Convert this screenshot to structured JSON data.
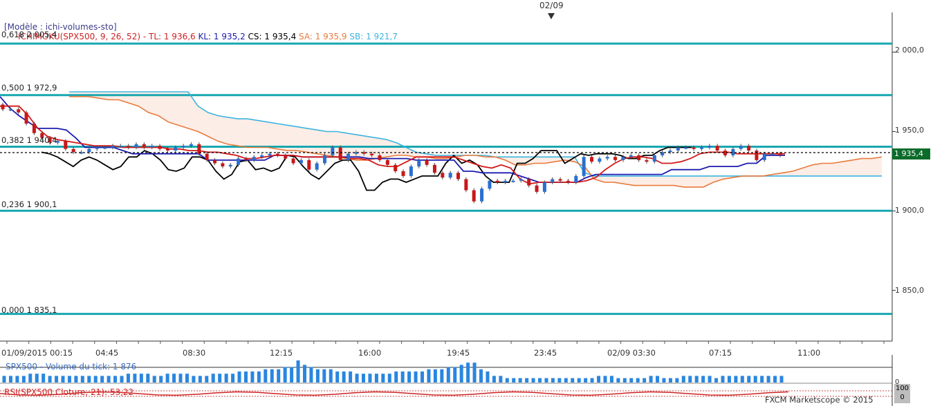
{
  "top_date": "02/09",
  "model_label": "[Modèle : ichi-volumes-sto]",
  "legend": {
    "ichimoku": "ICHIMOKU(SPX500, 9, 26, 52) -",
    "tl": "TL: 1 936,6",
    "kl": "KL: 1 935,2",
    "cs": "CS: 1 935,4",
    "sa": "SA: 1 935,9",
    "sb": "SB: 1 921,7"
  },
  "fib_levels": [
    {
      "label": "0,618 2 005,4",
      "value": 2005.4
    },
    {
      "label": "0,500 1 972,9",
      "value": 1972.9
    },
    {
      "label": "0,382 1 940,4",
      "value": 1940.4
    },
    {
      "label": "0,236 1 900,1",
      "value": 1900.1
    },
    {
      "label": "0,000 1 835,1",
      "value": 1835.1
    }
  ],
  "y_axis": [
    "2 000,0",
    "1 950,0",
    "1 900,0",
    "1 850,0"
  ],
  "price_tag": "1 935,4",
  "x_axis": [
    "01/09/2015 00:15",
    "04:45",
    "08:30",
    "12:15",
    "16:00",
    "19:45",
    "23:45",
    "02/09 03:30",
    "07:15",
    "11:00"
  ],
  "volume_title": "SPX500 - Volume du tick: 1 876",
  "volume_zero": "0",
  "rsi_title": "RSI(SPX500.Cloture, 21): 53,22",
  "rsi_box": [
    "100",
    "0"
  ],
  "credit": "FXCM Marketscope © 2015",
  "colors": {
    "fib": "#17a7b0",
    "tenkan": "#d21818",
    "kijun": "#1a1ab0",
    "chikou": "#000000",
    "senkou_a": "#e87a3c",
    "senkou_b": "#3ab4e0",
    "bull": "#2a6fd0",
    "bear": "#c81818",
    "volume": "#2a86e0"
  },
  "chart_data": {
    "type": "line",
    "title": "",
    "ylim": [
      1818,
      2025
    ],
    "series_hint": "ichimoku",
    "fibonacci": [
      2005.4,
      1972.9,
      1940.4,
      1900.1,
      1835.1
    ],
    "last_price": 1935.4,
    "tenkan": [
      1966,
      1966,
      1966,
      1960,
      1952,
      1947,
      1945,
      1944,
      1943,
      1942,
      1941,
      1941,
      1941,
      1940,
      1940,
      1940,
      1940,
      1940,
      1939,
      1939,
      1938,
      1938,
      1937,
      1937,
      1936,
      1935,
      1933,
      1933,
      1934,
      1935,
      1935,
      1935,
      1934,
      1934,
      1934,
      1934,
      1934,
      1933,
      1933,
      1932,
      1929,
      1928,
      1928,
      1931,
      1934,
      1934,
      1934,
      1934,
      1934,
      1932,
      1930,
      1928,
      1927,
      1929,
      1927,
      1920,
      1917,
      1918,
      1918,
      1918,
      1918,
      1918,
      1919,
      1921,
      1926,
      1930,
      1933,
      1934,
      1934,
      1933,
      1930,
      1930,
      1931,
      1933,
      1936,
      1937,
      1937,
      1937,
      1936,
      1936,
      1936,
      1936,
      1936,
      1936
    ],
    "kijun": [
      1972,
      1965,
      1960,
      1956,
      1952,
      1952,
      1952,
      1951,
      1946,
      1940,
      1940,
      1940,
      1940,
      1938,
      1936,
      1936,
      1936,
      1936,
      1936,
      1936,
      1936,
      1936,
      1932,
      1932,
      1932,
      1932,
      1932,
      1932,
      1932,
      1935,
      1935,
      1935,
      1934,
      1934,
      1934,
      1934,
      1934,
      1934,
      1934,
      1933,
      1933,
      1933,
      1933,
      1933,
      1932,
      1932,
      1932,
      1932,
      1932,
      1925,
      1925,
      1924,
      1924,
      1924,
      1924,
      1922,
      1920,
      1918,
      1918,
      1918,
      1918,
      1918,
      1921,
      1923,
      1923,
      1923,
      1923,
      1923,
      1923,
      1923,
      1923,
      1926,
      1926,
      1926,
      1926,
      1928,
      1928,
      1928,
      1928,
      1930,
      1930,
      1935,
      1935,
      1935
    ],
    "senkou_a": [
      1972,
      1972,
      1972,
      1971,
      1970,
      1970,
      1968,
      1966,
      1962,
      1960,
      1956,
      1954,
      1952,
      1950,
      1947,
      1944,
      1942,
      1941,
      1940,
      1940,
      1940,
      1939,
      1938,
      1938,
      1937,
      1936,
      1935,
      1934,
      1933,
      1932,
      1932,
      1933,
      1934,
      1935,
      1935,
      1934,
      1934,
      1933,
      1933,
      1934,
      1935,
      1935,
      1934,
      1934,
      1932,
      1929,
      1929,
      1930,
      1930,
      1931,
      1932,
      1931,
      1928,
      1920,
      1918,
      1918,
      1917,
      1916,
      1916,
      1916,
      1916,
      1916,
      1915,
      1915,
      1915,
      1918,
      1920,
      1921,
      1922,
      1922,
      1922,
      1923,
      1924,
      1925,
      1927,
      1929,
      1930,
      1930,
      1931,
      1932,
      1933,
      1933,
      1934
    ],
    "senkou_b": [
      1975,
      1975,
      1975,
      1975,
      1975,
      1975,
      1975,
      1975,
      1975,
      1975,
      1975,
      1975,
      1975,
      1966,
      1962,
      1960,
      1959,
      1958,
      1958,
      1957,
      1956,
      1955,
      1954,
      1953,
      1952,
      1951,
      1950,
      1950,
      1949,
      1948,
      1947,
      1946,
      1945,
      1943,
      1940,
      1937,
      1936,
      1935,
      1935,
      1935,
      1935,
      1935,
      1935,
      1934,
      1934,
      1934,
      1934,
      1934,
      1934,
      1934,
      1934,
      1934,
      1924,
      1922,
      1922,
      1922,
      1922,
      1922,
      1922,
      1922,
      1922,
      1922,
      1922,
      1922,
      1922,
      1922,
      1922,
      1922,
      1922,
      1922,
      1922,
      1922,
      1922,
      1922,
      1922,
      1922,
      1922,
      1922,
      1922,
      1922,
      1922,
      1922,
      1922
    ],
    "chikou": [
      1937,
      1936,
      1934,
      1931,
      1928,
      1932,
      1934,
      1932,
      1929,
      1926,
      1928,
      1934,
      1934,
      1938,
      1936,
      1932,
      1926,
      1925,
      1927,
      1934,
      1934,
      1932,
      1925,
      1920,
      1923,
      1931,
      1932,
      1926,
      1927,
      1925,
      1927,
      1935,
      1934,
      1928,
      1923,
      1920,
      1925,
      1930,
      1932,
      1932,
      1925,
      1913,
      1913,
      1918,
      1920,
      1920,
      1918,
      1920,
      1922,
      1922,
      1922,
      1930,
      1935,
      1930,
      1932,
      1929,
      1922,
      1918,
      1918,
      1918,
      1930,
      1930,
      1933,
      1938,
      1938,
      1938,
      1930,
      1933,
      1936,
      1935,
      1936,
      1936,
      1936,
      1935,
      1933,
      1933,
      1935,
      1935,
      1938,
      1940,
      1940,
      1940,
      1940
    ],
    "candles": [
      [
        1967,
        1964
      ],
      [
        1964,
        1964
      ],
      [
        1964,
        1962
      ],
      [
        1962,
        1955
      ],
      [
        1955,
        1949
      ],
      [
        1949,
        1946
      ],
      [
        1946,
        1943
      ],
      [
        1943,
        1944
      ],
      [
        1944,
        1939
      ],
      [
        1939,
        1937
      ],
      [
        1937,
        1937
      ],
      [
        1937,
        1939
      ],
      [
        1939,
        1940
      ],
      [
        1940,
        1940
      ],
      [
        1940,
        1941
      ],
      [
        1941,
        1941
      ],
      [
        1941,
        1940
      ],
      [
        1940,
        1942
      ],
      [
        1942,
        1940
      ],
      [
        1940,
        1941
      ],
      [
        1941,
        1939
      ],
      [
        1939,
        1938
      ],
      [
        1938,
        1940
      ],
      [
        1940,
        1941
      ],
      [
        1941,
        1942
      ],
      [
        1942,
        1936
      ],
      [
        1936,
        1932
      ],
      [
        1932,
        1930
      ],
      [
        1930,
        1928
      ],
      [
        1928,
        1929
      ],
      [
        1929,
        1933
      ],
      [
        1933,
        1932
      ],
      [
        1932,
        1934
      ],
      [
        1934,
        1935
      ],
      [
        1935,
        1936
      ],
      [
        1936,
        1935
      ],
      [
        1935,
        1933
      ],
      [
        1933,
        1930
      ],
      [
        1930,
        1932
      ],
      [
        1932,
        1926
      ],
      [
        1926,
        1930
      ],
      [
        1930,
        1935
      ],
      [
        1935,
        1940
      ],
      [
        1940,
        1932
      ],
      [
        1932,
        1936
      ],
      [
        1936,
        1937
      ],
      [
        1937,
        1936
      ],
      [
        1936,
        1935
      ],
      [
        1935,
        1932
      ],
      [
        1932,
        1929
      ],
      [
        1929,
        1925
      ],
      [
        1925,
        1922
      ],
      [
        1922,
        1928
      ],
      [
        1928,
        1932
      ],
      [
        1932,
        1929
      ],
      [
        1929,
        1924
      ],
      [
        1924,
        1921
      ],
      [
        1921,
        1924
      ],
      [
        1924,
        1920
      ],
      [
        1920,
        1913
      ],
      [
        1913,
        1906
      ],
      [
        1906,
        1914
      ],
      [
        1914,
        1919
      ],
      [
        1919,
        1918
      ],
      [
        1918,
        1919
      ],
      [
        1919,
        1919
      ],
      [
        1919,
        1920
      ],
      [
        1920,
        1916
      ],
      [
        1916,
        1912
      ],
      [
        1912,
        1918
      ],
      [
        1918,
        1920
      ],
      [
        1920,
        1919
      ],
      [
        1919,
        1918
      ],
      [
        1918,
        1922
      ],
      [
        1922,
        1934
      ],
      [
        1934,
        1931
      ],
      [
        1931,
        1933
      ],
      [
        1933,
        1934
      ],
      [
        1934,
        1932
      ],
      [
        1932,
        1934
      ],
      [
        1934,
        1935
      ],
      [
        1935,
        1932
      ],
      [
        1932,
        1931
      ],
      [
        1931,
        1935
      ],
      [
        1935,
        1937
      ],
      [
        1937,
        1938
      ],
      [
        1938,
        1940
      ],
      [
        1940,
        1940
      ],
      [
        1940,
        1939
      ],
      [
        1939,
        1940
      ],
      [
        1940,
        1941
      ],
      [
        1941,
        1938
      ],
      [
        1938,
        1935
      ],
      [
        1935,
        1939
      ],
      [
        1939,
        1941
      ],
      [
        1941,
        1938
      ],
      [
        1938,
        1932
      ],
      [
        1932,
        1936
      ],
      [
        1936,
        1936
      ],
      [
        1936,
        1935
      ]
    ],
    "volume": [
      3,
      3,
      3,
      3,
      4,
      4,
      4,
      3,
      3,
      3,
      3,
      3,
      3,
      3,
      3,
      3,
      3,
      3,
      3,
      4,
      4,
      4,
      4,
      3,
      3,
      4,
      4,
      4,
      4,
      3,
      3,
      3,
      4,
      4,
      4,
      4,
      5,
      5,
      5,
      5,
      6,
      6,
      6,
      7,
      7,
      10,
      8,
      7,
      6,
      6,
      6,
      5,
      5,
      5,
      4,
      4,
      4,
      4,
      4,
      4,
      5,
      5,
      5,
      5,
      5,
      6,
      6,
      6,
      7,
      7,
      8,
      9,
      9,
      6,
      5,
      3,
      3,
      2,
      2,
      2,
      2,
      2,
      2,
      2,
      2,
      2,
      2,
      2,
      2,
      2,
      2,
      3,
      3,
      3,
      2,
      2,
      2,
      2,
      2,
      3,
      3,
      2,
      2,
      2,
      3,
      3,
      3,
      3,
      3,
      2,
      3,
      3,
      3,
      3,
      3,
      3,
      3,
      3,
      3,
      3
    ]
  }
}
